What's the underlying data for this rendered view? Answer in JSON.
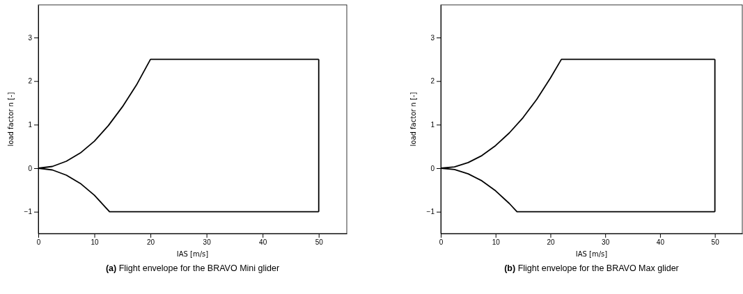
{
  "chart_data": [
    {
      "type": "line",
      "xlabel": "IAS [m/s]",
      "ylabel": "load factor n [-]",
      "xlim": [
        0,
        55
      ],
      "xticks": [
        0,
        10,
        20,
        30,
        40,
        50
      ],
      "ylim": [
        -1.5,
        3.75
      ],
      "yticks": [
        {
          "value": -1,
          "label": "−1"
        },
        0,
        1,
        2,
        3
      ],
      "grid": false,
      "marker": "none",
      "line_style": "solid",
      "series": [
        {
          "color": "#000000",
          "x": [
            0,
            2.5,
            5,
            7.5,
            10,
            12.5,
            15,
            17.5,
            20,
            50
          ],
          "values": [
            0,
            0.04,
            0.16,
            0.35,
            0.62,
            0.98,
            1.41,
            1.91,
            2.5,
            2.5
          ]
        },
        {
          "color": "#000000",
          "x": [
            50,
            50
          ],
          "values": [
            2.5,
            -1
          ]
        },
        {
          "color": "#000000",
          "x": [
            0,
            2.5,
            5,
            7.5,
            10,
            12.7,
            50
          ],
          "values": [
            0,
            -0.04,
            -0.16,
            -0.35,
            -0.62,
            -1,
            -1
          ]
        }
      ],
      "annotations": [
        "(a) Flight envelope for the BRAVO Mini glider"
      ]
    },
    {
      "type": "line",
      "xlabel": "IAS [m/s]",
      "ylabel": "load factor n [-]",
      "xlim": [
        0,
        55
      ],
      "xticks": [
        0,
        10,
        20,
        30,
        40,
        50
      ],
      "ylim": [
        -1.5,
        3.75
      ],
      "yticks": [
        {
          "value": -1,
          "label": "−1"
        },
        0,
        1,
        2,
        3
      ],
      "grid": false,
      "marker": "none",
      "line_style": "solid",
      "series": [
        {
          "color": "#000000",
          "x": [
            0,
            2.5,
            5,
            7.5,
            10,
            12.5,
            15,
            17.5,
            20,
            22,
            50
          ],
          "values": [
            0,
            0.03,
            0.13,
            0.29,
            0.52,
            0.81,
            1.16,
            1.58,
            2.07,
            2.5,
            2.5
          ]
        },
        {
          "color": "#000000",
          "x": [
            50,
            50
          ],
          "values": [
            2.5,
            -1
          ]
        },
        {
          "color": "#000000",
          "x": [
            0,
            2.5,
            5,
            7.5,
            10,
            12.5,
            13.9,
            50
          ],
          "values": [
            0,
            -0.03,
            -0.13,
            -0.29,
            -0.52,
            -0.81,
            -1,
            -1
          ]
        }
      ],
      "annotations": [
        "(b) Flight envelope for the BRAVO Max glider"
      ]
    }
  ]
}
